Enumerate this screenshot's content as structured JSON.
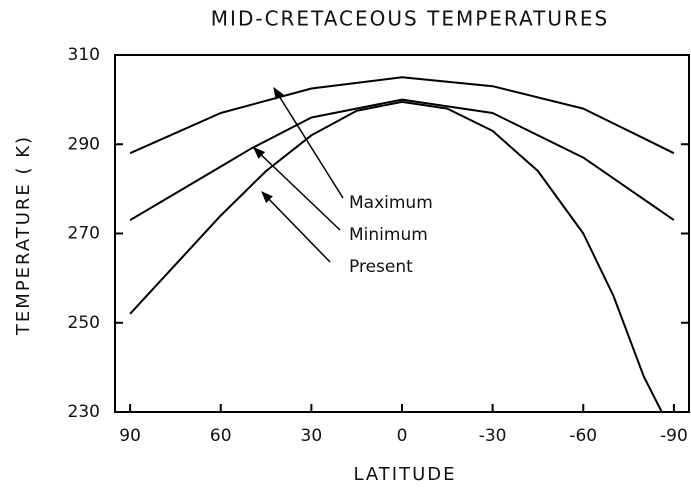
{
  "chart_data": {
    "type": "line",
    "title": "MID-CRETACEOUS TEMPERATURES",
    "x_label": "LATITUDE",
    "y_label": "TEMPERATURE ( K)",
    "xlim": [
      95,
      -95
    ],
    "ylim": [
      230,
      310
    ],
    "xticks": [
      90,
      60,
      30,
      0,
      -30,
      -60,
      -90
    ],
    "yticks": [
      230,
      250,
      270,
      290,
      310
    ],
    "series": [
      {
        "name": "Maximum",
        "color": "#000000",
        "x": [
          90,
          60,
          30,
          0,
          -30,
          -60,
          -90
        ],
        "values": [
          288,
          297,
          302.5,
          305,
          303,
          298,
          288
        ]
      },
      {
        "name": "Minimum",
        "color": "#000000",
        "x": [
          90,
          60,
          50,
          30,
          0,
          -30,
          -60,
          -90
        ],
        "values": [
          273,
          285,
          289,
          296,
          300,
          297,
          287,
          273
        ]
      },
      {
        "name": "Present",
        "color": "#000000",
        "x": [
          90,
          75,
          60,
          45,
          30,
          15,
          0,
          -15,
          -30,
          -45,
          -60,
          -70,
          -75,
          -80,
          -86
        ],
        "values": [
          252,
          263,
          274,
          284,
          292,
          297.5,
          299.5,
          298,
          293,
          284,
          270,
          256,
          247,
          238,
          230
        ]
      }
    ]
  }
}
